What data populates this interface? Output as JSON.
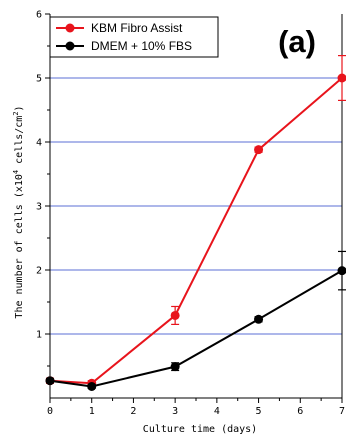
{
  "chart_data": {
    "type": "line",
    "panel_label": "(a)",
    "xlabel": "Culture time (days)",
    "ylabel_main": "The number of cells (x10",
    "ylabel_exp1": "4",
    "ylabel_mid": " cells/cm",
    "ylabel_exp2": "2",
    "ylabel_end": ")",
    "xlim": [
      0,
      7
    ],
    "ylim": [
      0,
      6
    ],
    "xticks": [
      0,
      1,
      2,
      3,
      4,
      5,
      6,
      7
    ],
    "yticks": [
      1,
      2,
      3,
      4,
      5,
      6
    ],
    "grid": "horizontal",
    "legend_position": "top-left",
    "series": [
      {
        "name": "KBM Fibro Assist",
        "color": "#e8141c",
        "x": [
          0,
          1,
          3,
          5,
          7
        ],
        "y": [
          0.27,
          0.23,
          1.29,
          3.88,
          5.0
        ],
        "err": [
          0.04,
          0.04,
          0.14,
          0.04,
          0.35
        ]
      },
      {
        "name": "DMEM + 10% FBS",
        "color": "#000000",
        "x": [
          0,
          1,
          3,
          5,
          7
        ],
        "y": [
          0.27,
          0.18,
          0.49,
          1.23,
          1.99
        ],
        "err": [
          0.03,
          0.03,
          0.06,
          0.04,
          0.3
        ]
      }
    ]
  }
}
